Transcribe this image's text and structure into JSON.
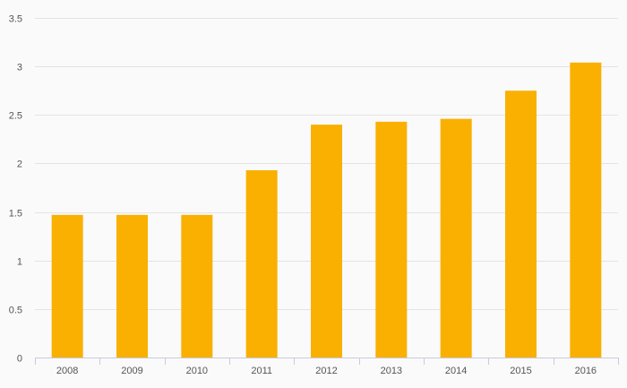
{
  "chart_data": {
    "type": "bar",
    "title": "",
    "xlabel": "",
    "ylabel": "",
    "categories": [
      "2008",
      "2009",
      "2010",
      "2011",
      "2012",
      "2013",
      "2014",
      "2015",
      "2016"
    ],
    "values": [
      1.47,
      1.47,
      1.47,
      1.93,
      2.4,
      2.43,
      2.46,
      2.75,
      3.04
    ],
    "ylim": [
      0,
      3.5
    ],
    "yticks": [
      "0",
      "0.5",
      "1",
      "1.5",
      "2",
      "2.5",
      "3",
      "3.5"
    ],
    "grid": true,
    "legend": "none",
    "colors": {
      "bar": "#f9b000",
      "grid": "#e3e3e3",
      "axis": "#c8cbdc",
      "text": "#555555",
      "background": "#fafafa"
    }
  }
}
